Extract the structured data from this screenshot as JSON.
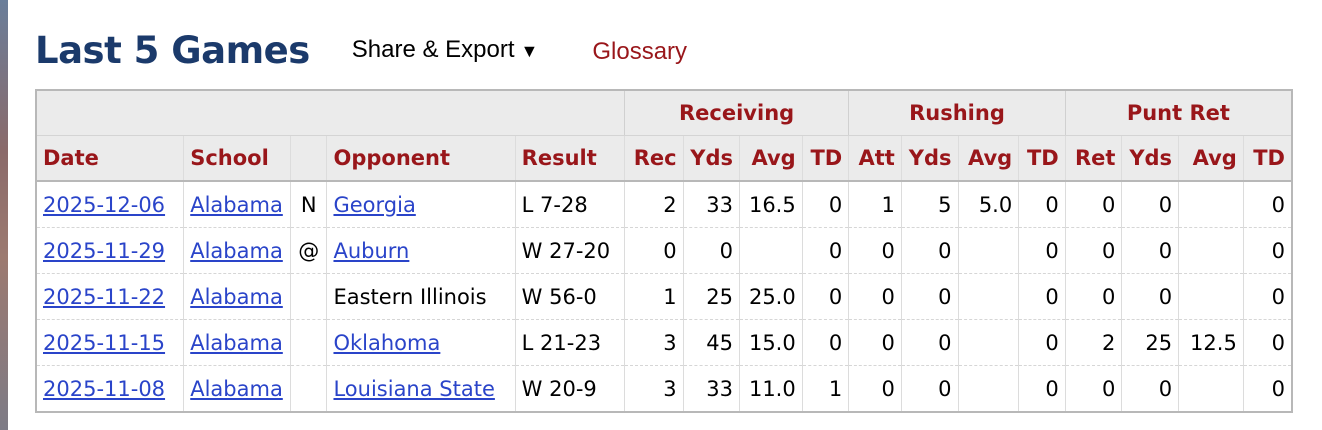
{
  "header": {
    "title": "Last 5 Games",
    "share_label": "Share & Export",
    "share_caret": "▼",
    "glossary_label": "Glossary"
  },
  "table": {
    "groups": [
      "Receiving",
      "Rushing",
      "Punt Ret"
    ],
    "columns": [
      "Date",
      "School",
      "",
      "Opponent",
      "Result",
      "Rec",
      "Yds",
      "Avg",
      "TD",
      "Att",
      "Yds",
      "Avg",
      "TD",
      "Ret",
      "Yds",
      "Avg",
      "TD"
    ],
    "rows": [
      [
        "2025-12-06",
        "Alabama",
        "N",
        "Georgia",
        "L 7-28",
        "2",
        "33",
        "16.5",
        "0",
        "1",
        "5",
        "5.0",
        "0",
        "0",
        "0",
        "",
        "0"
      ],
      [
        "2025-11-29",
        "Alabama",
        "@",
        "Auburn",
        "W 27-20",
        "0",
        "0",
        "",
        "0",
        "0",
        "0",
        "",
        "0",
        "0",
        "0",
        "",
        "0"
      ],
      [
        "2025-11-22",
        "Alabama",
        "",
        "Eastern Illinois",
        "W 56-0",
        "1",
        "25",
        "25.0",
        "0",
        "0",
        "0",
        "",
        "0",
        "0",
        "0",
        "",
        "0"
      ],
      [
        "2025-11-15",
        "Alabama",
        "",
        "Oklahoma",
        "L 21-23",
        "3",
        "45",
        "15.0",
        "0",
        "0",
        "0",
        "",
        "0",
        "2",
        "25",
        "12.5",
        "0"
      ],
      [
        "2025-11-08",
        "Alabama",
        "",
        "Louisiana State",
        "W 20-9",
        "3",
        "33",
        "11.0",
        "1",
        "0",
        "0",
        "",
        "0",
        "0",
        "0",
        "",
        "0"
      ]
    ],
    "opponent_linked": [
      true,
      true,
      false,
      true,
      true
    ]
  },
  "colors": {
    "title": "#1b3a6b",
    "accent_red": "#99161a",
    "link_blue": "#2a44c9",
    "header_bg": "#ebebeb"
  }
}
